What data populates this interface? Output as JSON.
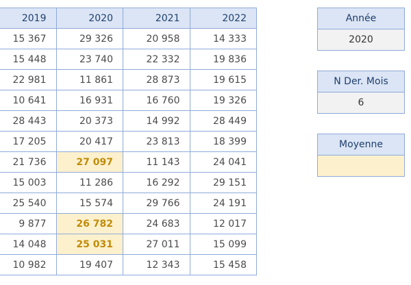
{
  "table": {
    "headers": [
      "2019",
      "2020",
      "2021",
      "2022"
    ],
    "rows": [
      [
        "15 367",
        "29 326",
        "20 958",
        "14 333"
      ],
      [
        "15 448",
        "23 740",
        "22 332",
        "19 836"
      ],
      [
        "22 981",
        "11 861",
        "28 873",
        "19 615"
      ],
      [
        "10 641",
        "16 931",
        "16 760",
        "19 326"
      ],
      [
        "28 443",
        "20 373",
        "14 992",
        "28 449"
      ],
      [
        "17 205",
        "20 417",
        "23 813",
        "18 399"
      ],
      [
        "21 736",
        "27 097",
        "11 143",
        "24 041"
      ],
      [
        "15 003",
        "11 286",
        "16 292",
        "29 151"
      ],
      [
        "25 540",
        "15 574",
        "29 766",
        "24 191"
      ],
      [
        "9 877",
        "26 782",
        "24 683",
        "12 017"
      ],
      [
        "14 048",
        "25 031",
        "27 011",
        "15 099"
      ],
      [
        "10 982",
        "19 407",
        "12 343",
        "15 458"
      ]
    ],
    "highlighted_cells": [
      [
        6,
        1
      ],
      [
        9,
        1
      ],
      [
        10,
        1
      ]
    ]
  },
  "panels": {
    "annee": {
      "label": "Année",
      "value": "2020"
    },
    "n_der_mois": {
      "label": "N Der. Mois",
      "value": "6"
    },
    "moyenne": {
      "label": "Moyenne",
      "value": ""
    }
  },
  "colors": {
    "header_fill": "#dbe5f5",
    "border": "#8ea9db",
    "highlight_fill": "#fdf1cd",
    "highlight_text": "#c18b0a",
    "input_fill": "#f2f2f2"
  }
}
